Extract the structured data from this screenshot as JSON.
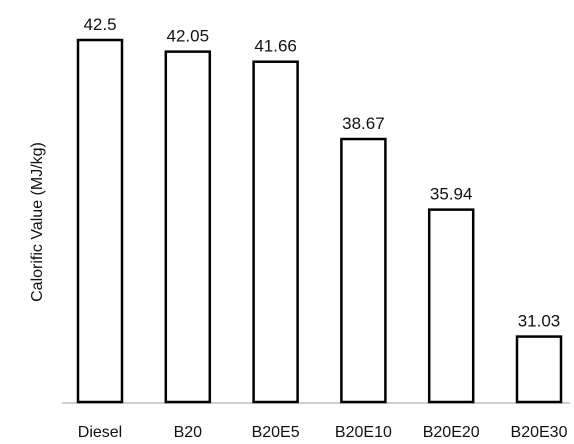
{
  "chart_data": {
    "type": "bar",
    "title": "",
    "xlabel": "",
    "ylabel": "Calorific Value (MJ/kg)",
    "ylim": [
      28.5,
      42.5
    ],
    "grid": false,
    "legend": "none",
    "categories": [
      "Diesel",
      "B20",
      "B20E5",
      "B20E10",
      "B20E20",
      "B20E30"
    ],
    "values": [
      42.5,
      42.05,
      41.66,
      38.67,
      35.94,
      31.03
    ],
    "value_labels": [
      "42.5",
      "42.05",
      "41.66",
      "38.67",
      "35.94",
      "31.03"
    ],
    "colors": {
      "bar_fill": "#ffffff",
      "bar_stroke": "#000000",
      "axis": "#bfbfbf"
    }
  }
}
